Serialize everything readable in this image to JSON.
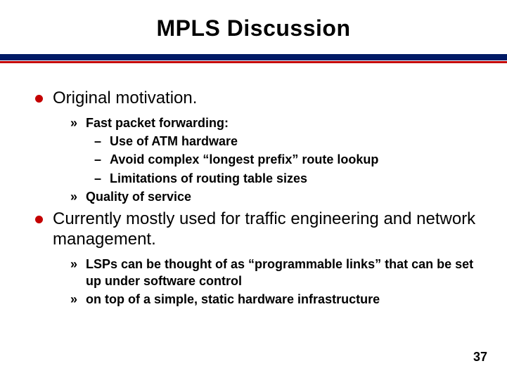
{
  "colors": {
    "rule_navy": "#001a66",
    "rule_red": "#c40000",
    "l1_bullet": "#c40000",
    "background": "#ffffff",
    "text": "#000000"
  },
  "typography": {
    "title_fontsize_pt": 24,
    "l1_fontsize_pt": 18,
    "l2_fontsize_pt": 13,
    "font_family": "Arial"
  },
  "title": "MPLS Discussion",
  "bullets": [
    {
      "text": "Original motivation.",
      "children": [
        {
          "text": "Fast packet forwarding:",
          "children": [
            {
              "text": "Use of ATM hardware"
            },
            {
              "text": "Avoid complex “longest prefix” route lookup"
            },
            {
              "text": "Limitations of routing table sizes"
            }
          ]
        },
        {
          "text": "Quality of service"
        }
      ]
    },
    {
      "text": "Currently mostly used for traffic engineering and network management.",
      "children": [
        {
          "text": "LSPs can be thought of as “programmable links” that can be set up under software control"
        },
        {
          "text": "on top of a simple, static hardware infrastructure"
        }
      ]
    }
  ],
  "glyphs": {
    "l2_bullet": "»",
    "l3_bullet": "–"
  },
  "page_number": "37"
}
